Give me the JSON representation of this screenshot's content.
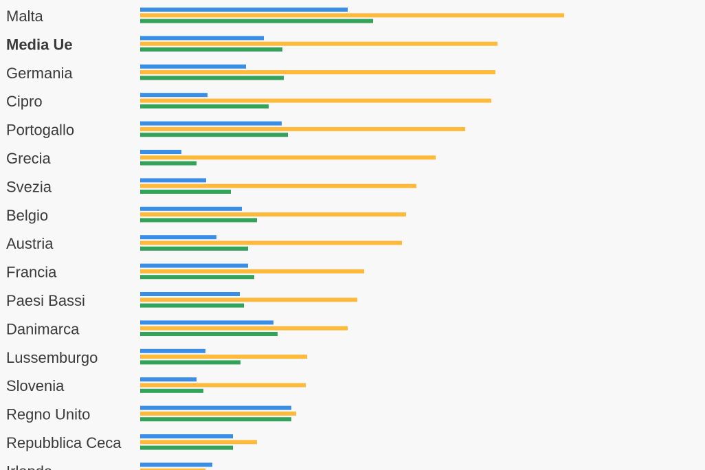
{
  "chart_data": {
    "type": "bar",
    "orientation": "horizontal",
    "highlight_category": "Media Ue",
    "categories": [
      "Malta",
      "Media Ue",
      "Germania",
      "Cipro",
      "Portogallo",
      "Grecia",
      "Svezia",
      "Belgio",
      "Austria",
      "Francia",
      "Paesi Bassi",
      "Danimarca",
      "Lussemburgo",
      "Slovenia",
      "Regno Unito",
      "Repubblica Ceca",
      "Irlanda"
    ],
    "series": [
      {
        "color": "#3a8ee6",
        "values": [
          302,
          180,
          154,
          98,
          206,
          60,
          96,
          148,
          111,
          157,
          145,
          194,
          95,
          82,
          220,
          135,
          105
        ]
      },
      {
        "color": "#ffb93b",
        "values": [
          617,
          520,
          517,
          511,
          473,
          430,
          402,
          387,
          381,
          326,
          316,
          302,
          243,
          241,
          227,
          170,
          95
        ]
      },
      {
        "color": "#33a35a",
        "values": [
          339,
          207,
          209,
          187,
          215,
          82,
          132,
          170,
          157,
          166,
          151,
          200,
          146,
          92,
          220,
          135,
          null
        ]
      }
    ]
  }
}
